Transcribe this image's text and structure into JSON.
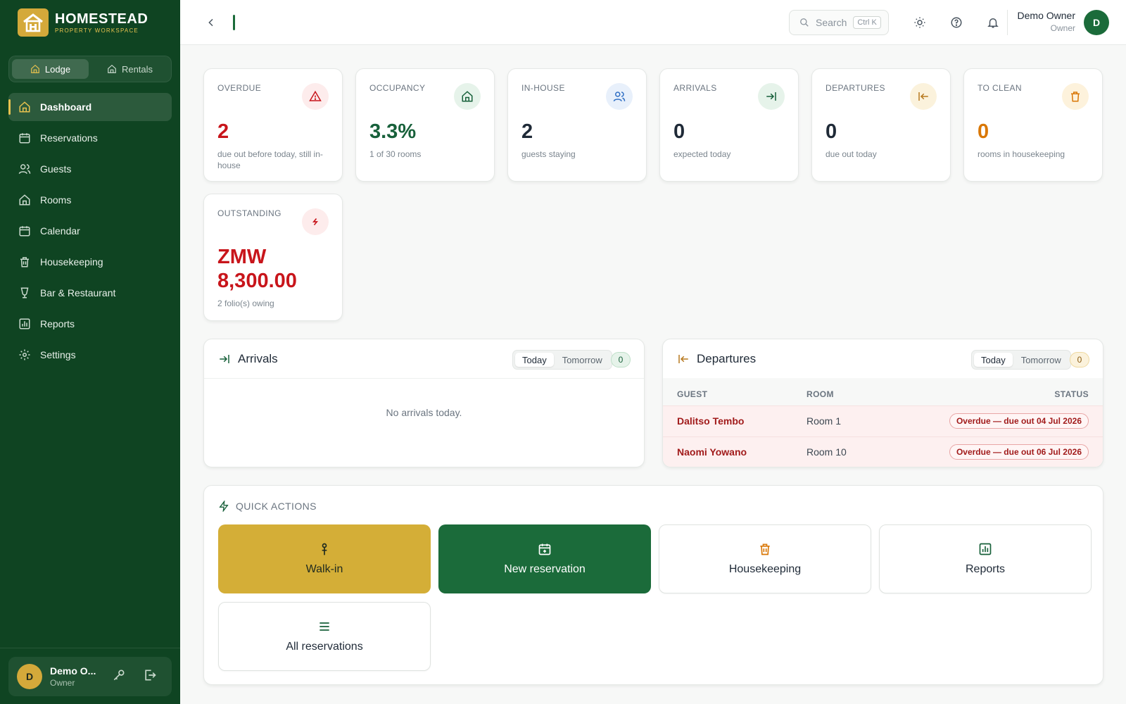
{
  "brand": {
    "name": "HOMESTEAD",
    "subtitle": "PROPERTY WORKSPACE"
  },
  "property_switch": {
    "options": [
      "Lodge",
      "Rentals"
    ],
    "selected": "Lodge"
  },
  "sidebar": {
    "items": [
      {
        "label": "Dashboard",
        "icon": "home-icon",
        "active": true
      },
      {
        "label": "Reservations",
        "icon": "calendar-icon"
      },
      {
        "label": "Guests",
        "icon": "users-icon"
      },
      {
        "label": "Rooms",
        "icon": "building-icon"
      },
      {
        "label": "Calendar",
        "icon": "calendar-icon"
      },
      {
        "label": "Housekeeping",
        "icon": "trash-icon"
      },
      {
        "label": "Bar & Restaurant",
        "icon": "cup-icon"
      },
      {
        "label": "Reports",
        "icon": "chart-icon"
      },
      {
        "label": "Settings",
        "icon": "gear-icon"
      }
    ],
    "user": {
      "initial": "D",
      "name": "Demo O...",
      "role": "Owner"
    }
  },
  "header": {
    "search_placeholder": "Search",
    "shortcut": "Ctrl K",
    "user_name": "Demo Owner",
    "user_role": "Owner",
    "user_initial": "D"
  },
  "stats": [
    {
      "label": "OVERDUE",
      "value": "2",
      "sub": "due out before today, still in-house",
      "color": "#c8151b",
      "icon": "alert-triangle-icon"
    },
    {
      "label": "OCCUPANCY",
      "value": "3.3%",
      "sub": "1 of 30 rooms",
      "color": "#17603a",
      "icon": "building-icon"
    },
    {
      "label": "IN-HOUSE",
      "value": "2",
      "sub": "guests staying",
      "color": "#1f2a37",
      "icon": "users-icon"
    },
    {
      "label": "ARRIVALS",
      "value": "0",
      "sub": "expected today",
      "color": "#1f2a37",
      "icon": "arrow-in-icon"
    },
    {
      "label": "DEPARTURES",
      "value": "0",
      "sub": "due out today",
      "color": "#1f2a37",
      "icon": "arrow-out-icon"
    },
    {
      "label": "TO CLEAN",
      "value": "0",
      "sub": "rooms in housekeeping",
      "color": "#d97706",
      "icon": "trash-icon"
    },
    {
      "label": "OUTSTANDING",
      "value": "ZMW 8,300.00",
      "sub": "2 folio(s) owing",
      "color": "#c8151b",
      "icon": "currency-icon"
    }
  ],
  "arrivals": {
    "title": "Arrivals",
    "tabs": [
      "Today",
      "Tomorrow"
    ],
    "count": "0",
    "empty": "No arrivals today."
  },
  "departures": {
    "title": "Departures",
    "tabs": [
      "Today",
      "Tomorrow"
    ],
    "count": "0",
    "columns": [
      "GUEST",
      "ROOM",
      "STATUS"
    ],
    "rows": [
      {
        "guest": "Dalitso Tembo",
        "room": "Room 1",
        "status": "Overdue — due out 04 Jul 2026"
      },
      {
        "guest": "Naomi Yowano",
        "room": "Room 10",
        "status": "Overdue — due out 06 Jul 2026"
      }
    ]
  },
  "quick_actions": {
    "title": "QUICK ACTIONS",
    "buttons": [
      {
        "label": "Walk-in",
        "icon": "person-icon"
      },
      {
        "label": "New reservation",
        "icon": "calendar-plus-icon"
      },
      {
        "label": "Housekeeping",
        "icon": "trash-icon"
      },
      {
        "label": "Reports",
        "icon": "chart-icon"
      },
      {
        "label": "All reservations",
        "icon": "list-icon"
      }
    ]
  }
}
